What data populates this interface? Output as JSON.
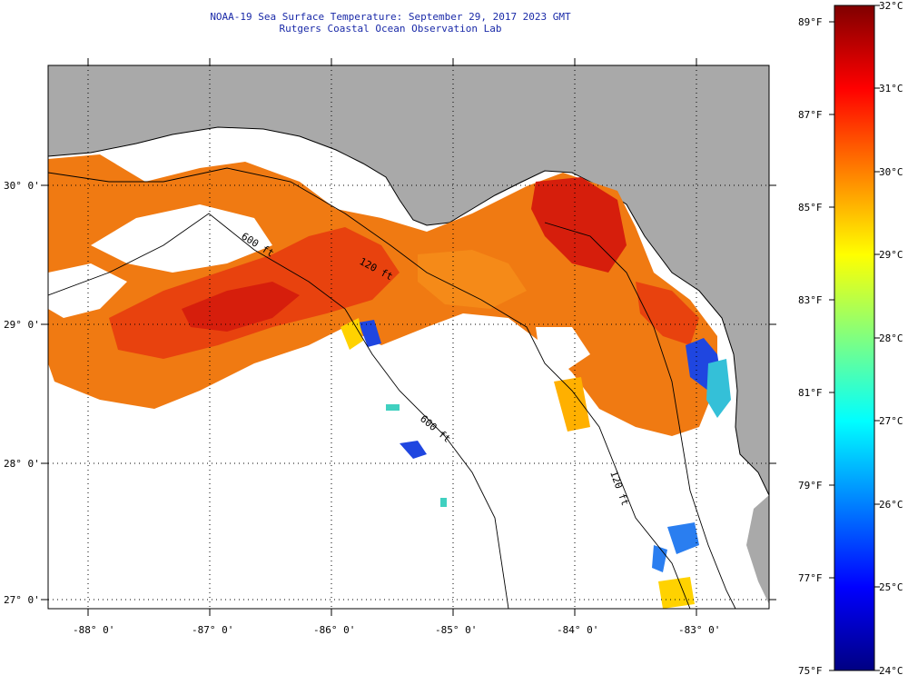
{
  "header": {
    "title_line1": "NOAA-19 Sea Surface Temperature:  September 29, 2017 2023 GMT",
    "title_line2": "Rutgers Coastal Ocean Observation Lab"
  },
  "map": {
    "lon_labels": [
      "-88° 0'",
      "-87° 0'",
      "-86° 0'",
      "-85° 0'",
      "-84° 0'",
      "-83° 0'"
    ],
    "lat_labels": [
      "30° 0'",
      "29° 0'",
      "28° 0'",
      "27° 0'"
    ],
    "isobath_labels": [
      "600 ft",
      "120 ft",
      "600 ft",
      "120 ft"
    ],
    "colors": {
      "land": "#a9a9a9",
      "no_data": "#ffffff",
      "warm_sst": "#f06a10",
      "hot_sst": "#d81e0c",
      "cool_sst": "#1f46e0"
    }
  },
  "colorbar": {
    "celsius_labels": [
      "32°C",
      "31°C",
      "30°C",
      "29°C",
      "28°C",
      "27°C",
      "26°C",
      "25°C",
      "24°C"
    ],
    "fahrenheit_labels": [
      "89°F",
      "87°F",
      "85°F",
      "83°F",
      "81°F",
      "79°F",
      "77°F",
      "75°F"
    ],
    "stops": [
      "#000082",
      "#0000ff",
      "#0080ff",
      "#00ffff",
      "#80ff80",
      "#ffff00",
      "#ff8000",
      "#ff0000",
      "#800000"
    ]
  }
}
